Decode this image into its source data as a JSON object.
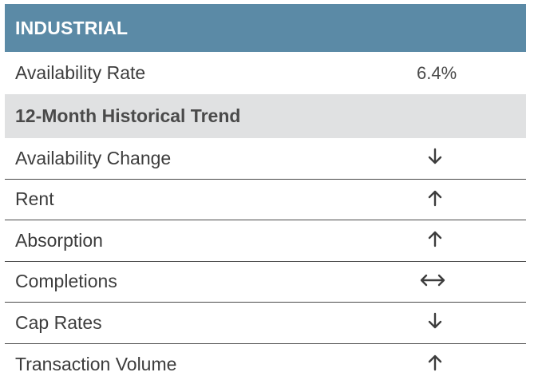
{
  "header": {
    "title": "INDUSTRIAL"
  },
  "availability": {
    "label": "Availability Rate",
    "value": "6.4%"
  },
  "section": {
    "title": "12-Month Historical Trend"
  },
  "trends": [
    {
      "label": "Availability Change",
      "direction": "down",
      "icon": "arrow-down-icon"
    },
    {
      "label": "Rent",
      "direction": "up",
      "icon": "arrow-up-icon"
    },
    {
      "label": "Absorption",
      "direction": "up",
      "icon": "arrow-up-icon"
    },
    {
      "label": "Completions",
      "direction": "neutral",
      "icon": "arrow-left-right-icon"
    },
    {
      "label": "Cap Rates",
      "direction": "down",
      "icon": "arrow-down-icon"
    },
    {
      "label": "Transaction Volume",
      "direction": "up",
      "icon": "arrow-up-icon"
    }
  ],
  "colors": {
    "header_bg": "#5b8aa6",
    "section_bg": "#e0e1e2",
    "text": "#3d3d3d"
  }
}
